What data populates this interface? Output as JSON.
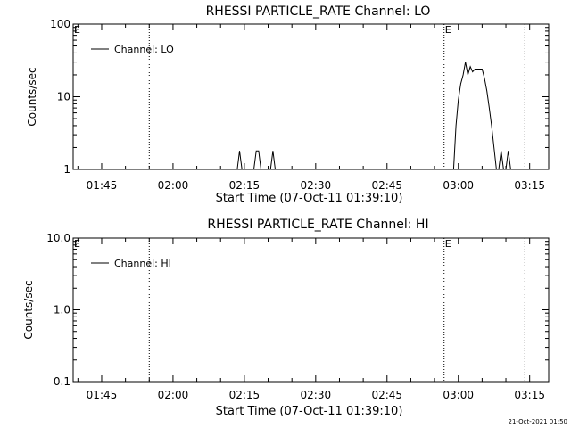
{
  "chart_data": [
    {
      "type": "line",
      "title": "RHESSI PARTICLE_RATE Channel: LO",
      "xlabel": "Start Time (07-Oct-11 01:39:10)",
      "ylabel": "Counts/sec",
      "y_scale": "log",
      "ylim": [
        1,
        100
      ],
      "xlim": [
        "01:39",
        "03:19"
      ],
      "x_ticks": [
        "01:45",
        "02:00",
        "02:15",
        "02:30",
        "02:45",
        "03:00",
        "03:15"
      ],
      "y_ticks": [
        "1",
        "10",
        "100"
      ],
      "legend": {
        "label": "Channel: LO",
        "placement": "top-left"
      },
      "markers": [
        {
          "x": "01:55",
          "label": ""
        },
        {
          "x": "02:57",
          "label": "E"
        },
        {
          "x": "03:14",
          "label": ""
        }
      ],
      "edge_label": "E",
      "grid": false,
      "series": [
        {
          "name": "Channel: LO",
          "segments": [
            {
              "x": [
                "02:13.5",
                "02:14.0",
                "02:14.5"
              ],
              "y": [
                1,
                1.8,
                1
              ]
            },
            {
              "x": [
                "02:17.0",
                "02:17.5",
                "02:18.0",
                "02:18.5"
              ],
              "y": [
                1,
                1.8,
                1.8,
                1
              ]
            },
            {
              "x": [
                "02:20.5",
                "02:21.0",
                "02:21.5"
              ],
              "y": [
                1,
                1.8,
                1
              ]
            },
            {
              "x": [
                "02:59.0",
                "02:59.5",
                "03:00.0",
                "03:00.5",
                "03:01.0",
                "03:01.5",
                "03:02.0",
                "03:02.5",
                "03:03.0",
                "03:03.5",
                "03:04.0",
                "03:04.5",
                "03:05.0",
                "03:05.5",
                "03:06.0",
                "03:06.5",
                "03:07.0",
                "03:07.5",
                "03:08.0"
              ],
              "y": [
                1,
                4,
                9,
                15,
                20,
                30,
                20,
                26,
                22,
                24,
                24,
                24,
                24,
                18,
                12,
                7,
                4,
                2,
                1
              ]
            },
            {
              "x": [
                "03:08.5",
                "03:09.0",
                "03:09.5"
              ],
              "y": [
                1,
                1.8,
                1
              ]
            },
            {
              "x": [
                "03:10.0",
                "03:10.5",
                "03:11.0"
              ],
              "y": [
                1,
                1.8,
                1
              ]
            }
          ]
        }
      ]
    },
    {
      "type": "line",
      "title": "RHESSI PARTICLE_RATE Channel: HI",
      "xlabel": "Start Time (07-Oct-11 01:39:10)",
      "ylabel": "Counts/sec",
      "y_scale": "log",
      "ylim": [
        0.1,
        10
      ],
      "xlim": [
        "01:39",
        "03:19"
      ],
      "x_ticks": [
        "01:45",
        "02:00",
        "02:15",
        "02:30",
        "02:45",
        "03:00",
        "03:15"
      ],
      "y_ticks": [
        "0.1",
        "1.0",
        "10.0"
      ],
      "legend": {
        "label": "Channel: HI",
        "placement": "top-left"
      },
      "markers": [
        {
          "x": "01:55",
          "label": ""
        },
        {
          "x": "02:57",
          "label": "E"
        },
        {
          "x": "03:14",
          "label": ""
        }
      ],
      "edge_label": "E",
      "grid": false,
      "series": [
        {
          "name": "Channel: HI",
          "segments": []
        }
      ]
    }
  ],
  "footer": {
    "timestamp": "21-Oct-2021 01:50"
  }
}
